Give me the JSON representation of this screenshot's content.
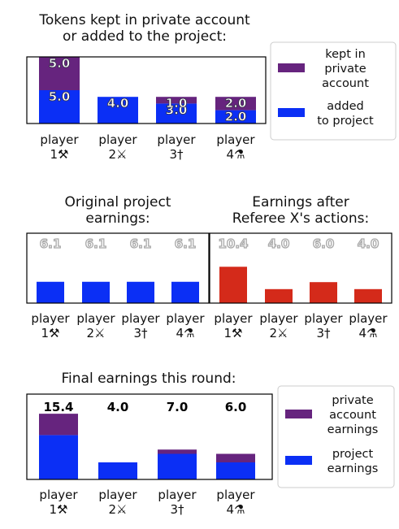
{
  "chart_data": [
    {
      "type": "stacked_bar",
      "title": "Tokens kept in private account\nor added to the project:",
      "categories": [
        "player\n1⚒",
        "player\n2⚔",
        "player\n3†",
        "player\n4⚗"
      ],
      "series": [
        {
          "name": "added\nto project",
          "color": "#0b2ff5",
          "values": [
            5,
            4,
            3,
            2
          ],
          "value_labels": [
            "5.0",
            "4.0",
            "3.0",
            "2.0"
          ]
        },
        {
          "name": "kept in\nprivate\naccount",
          "color": "#66247e",
          "values": [
            5,
            0,
            1,
            2
          ],
          "value_labels": [
            "5.0",
            null,
            "1.0",
            "2.0"
          ]
        }
      ],
      "ylim": [
        0,
        10
      ],
      "legend": "right"
    },
    {
      "type": "bar",
      "title": "Original project\nearnings:",
      "categories": [
        "player\n1⚒",
        "player\n2⚔",
        "player\n3†",
        "player\n4⚗"
      ],
      "values": [
        6.1,
        6.1,
        6.1,
        6.1
      ],
      "value_labels": [
        "6.1",
        "6.1",
        "6.1",
        "6.1"
      ],
      "color": "#0b2ff5",
      "ylim": [
        0,
        20
      ]
    },
    {
      "type": "bar",
      "title": "Earnings after\nReferee X's actions:",
      "categories": [
        "player\n1⚒",
        "player\n2⚔",
        "player\n3†",
        "player\n4⚗"
      ],
      "values": [
        10.4,
        4,
        6,
        4
      ],
      "value_labels": [
        "10.4",
        "4.0",
        "6.0",
        "4.0"
      ],
      "color": "#d42a1a",
      "ylim": [
        0,
        20
      ]
    },
    {
      "type": "stacked_bar",
      "title": "Final earnings this round:",
      "categories": [
        "player\n1⚒",
        "player\n2⚔",
        "player\n3†",
        "player\n4⚗"
      ],
      "series": [
        {
          "name": "project\nearnings",
          "color": "#0b2ff5",
          "values": [
            10.4,
            4,
            6,
            4
          ]
        },
        {
          "name": "private\naccount\nearnings",
          "color": "#66247e",
          "values": [
            5,
            0,
            1,
            2
          ]
        }
      ],
      "total_labels": [
        "15.4",
        "4.0",
        "7.0",
        "6.0"
      ],
      "ylim": [
        0,
        20
      ],
      "legend": "right"
    }
  ]
}
